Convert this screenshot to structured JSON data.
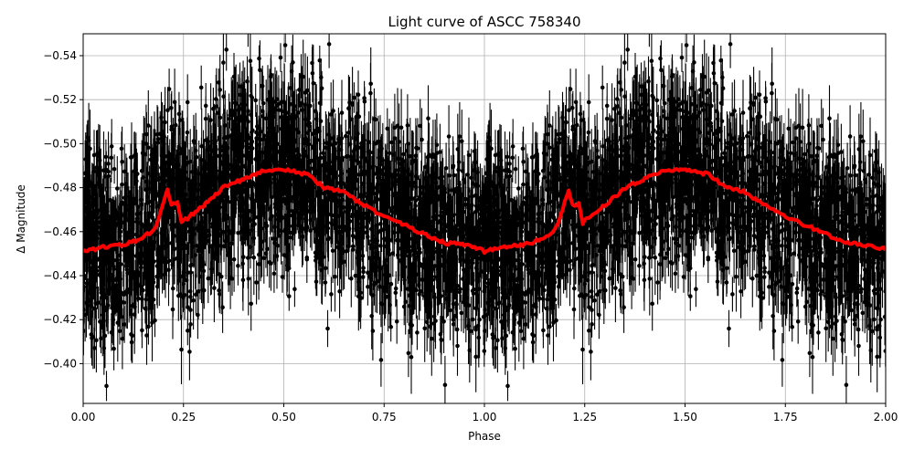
{
  "figure": {
    "title": "Light curve of ASCC 758340",
    "xlabel": "Phase",
    "ylabel": "Δ Magnitude"
  },
  "chart_data": {
    "type": "scatter",
    "title": "Light curve of ASCC 758340",
    "xlabel": "Phase",
    "ylabel": "Δ Magnitude",
    "xlim": [
      0.0,
      2.0
    ],
    "ylim": [
      -0.382,
      -0.55
    ],
    "y_inverted": true,
    "grid": true,
    "legend": null,
    "x_ticks": [
      "0.00",
      "0.25",
      "0.50",
      "0.75",
      "1.00",
      "1.25",
      "1.50",
      "1.75",
      "2.00"
    ],
    "x_tick_values": [
      0.0,
      0.25,
      0.5,
      0.75,
      1.0,
      1.25,
      1.5,
      1.75,
      2.0
    ],
    "y_ticks": [
      "−0.54",
      "−0.52",
      "−0.50",
      "−0.48",
      "−0.46",
      "−0.44",
      "−0.42",
      "−0.40"
    ],
    "y_tick_values": [
      -0.54,
      -0.52,
      -0.5,
      -0.48,
      -0.46,
      -0.44,
      -0.42,
      -0.4
    ],
    "series": [
      {
        "name": "observations",
        "kind": "errorbar-scatter",
        "color": "#000000",
        "description": "Thousands of phase-folded photometric points with vertical error bars, spread roughly ±0.05 mag around the model curve, repeated for phases 0–1 and 1–2",
        "scatter_halfwidth_mag": 0.05
      },
      {
        "name": "binned model",
        "kind": "line",
        "color": "#ff0000",
        "linewidth": 4,
        "phase": [
          0.0,
          0.05,
          0.1,
          0.15,
          0.18,
          0.195,
          0.21,
          0.22,
          0.235,
          0.245,
          0.3,
          0.35,
          0.4,
          0.45,
          0.5,
          0.56,
          0.6,
          0.65,
          0.7,
          0.75,
          0.8,
          0.85,
          0.9,
          0.95,
          1.0
        ],
        "magnitude": [
          -0.451,
          -0.453,
          -0.454,
          -0.457,
          -0.462,
          -0.47,
          -0.479,
          -0.472,
          -0.473,
          -0.464,
          -0.472,
          -0.48,
          -0.484,
          -0.488,
          -0.488,
          -0.486,
          -0.48,
          -0.478,
          -0.472,
          -0.467,
          -0.463,
          -0.459,
          -0.455,
          -0.454,
          -0.452
        ],
        "repeats_with_period": 1.0
      }
    ]
  },
  "colors": {
    "points": "#000000",
    "model": "#ff0000",
    "grid": "#b0b0b0",
    "axes": "#000000",
    "background": "#ffffff"
  }
}
